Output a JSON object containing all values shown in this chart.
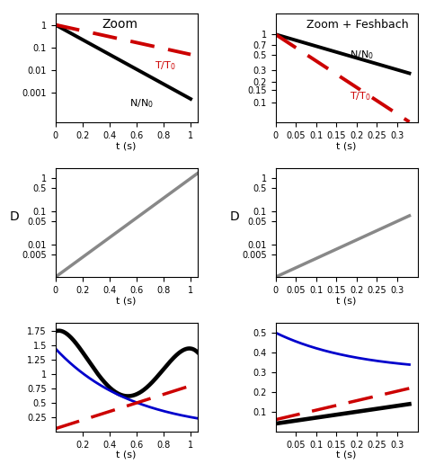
{
  "colors": {
    "black": "#000000",
    "red": "#cc0000",
    "blue": "#0000cc",
    "gray": "#888888"
  },
  "top_left": {
    "title": "Zoom",
    "xlim": [
      0,
      1.05
    ],
    "xticks": [
      0,
      0.2,
      0.4,
      0.6,
      0.8,
      1.0
    ],
    "xticklabels": [
      "0",
      "0.2",
      "0.4",
      "0.6",
      "0.8",
      "1"
    ],
    "ylim": [
      5e-05,
      3.0
    ],
    "yticks": [
      0.001,
      0.01,
      0.1,
      1
    ],
    "yticklabels": [
      "0.001",
      "0.01",
      "0.1",
      "1"
    ],
    "xlabel": "t (s)",
    "N_rate": 7.5,
    "T_rate": 3.0
  },
  "top_right": {
    "title": "Zoom + Feshbach",
    "xlim": [
      0,
      0.35
    ],
    "xticks": [
      0,
      0.05,
      0.1,
      0.15,
      0.2,
      0.25,
      0.3
    ],
    "xticklabels": [
      "0",
      "0.05",
      "0.1",
      "0.15",
      "0.2",
      "0.25",
      "0.3"
    ],
    "ylim": [
      0.05,
      2.0
    ],
    "yticks": [
      0.1,
      0.15,
      0.2,
      0.3,
      0.5,
      0.7,
      1.0
    ],
    "yticklabels": [
      "0.1",
      "0.15",
      "0.2",
      "0.3",
      "0.5",
      "0.7",
      "1"
    ],
    "xlabel": "t (s)",
    "N_rate": 4.0,
    "T_rate": 9.0
  },
  "mid_left": {
    "ylabel": "D",
    "xlim": [
      0,
      1.05
    ],
    "xticks": [
      0,
      0.2,
      0.4,
      0.6,
      0.8,
      1.0
    ],
    "xticklabels": [
      "0",
      "0.2",
      "0.4",
      "0.6",
      "0.8",
      "1"
    ],
    "ylim": [
      0.001,
      2.0
    ],
    "yticks": [
      0.005,
      0.01,
      0.05,
      0.1,
      0.5,
      1.0
    ],
    "yticklabels": [
      "0.005",
      "0.01",
      "0.05",
      "0.1",
      "0.5",
      "1"
    ],
    "xlabel": "t (s)",
    "D0": 0.001,
    "D_rate": 6.9
  },
  "mid_right": {
    "ylabel": "D",
    "xlim": [
      0,
      0.35
    ],
    "xticks": [
      0,
      0.05,
      0.1,
      0.15,
      0.2,
      0.25,
      0.3
    ],
    "xticklabels": [
      "0",
      "0.05",
      "0.1",
      "0.15",
      "0.2",
      "0.25",
      "0.3"
    ],
    "ylim": [
      0.001,
      2.0
    ],
    "yticks": [
      0.005,
      0.01,
      0.05,
      0.1,
      0.5,
      1.0
    ],
    "yticklabels": [
      "0.005",
      "0.01",
      "0.05",
      "0.1",
      "0.5",
      "1"
    ],
    "xlabel": "t (s)",
    "D0": 0.001,
    "D_rate": 13.0
  },
  "bot_left": {
    "xlim": [
      0,
      1.05
    ],
    "xticks": [
      0.2,
      0.4,
      0.6,
      0.8,
      1.0
    ],
    "xticklabels": [
      "0.2",
      "0.4",
      "0.6",
      "0.8",
      "1"
    ],
    "ylim": [
      0.0,
      1.9
    ],
    "yticks": [
      0.25,
      0.5,
      0.75,
      1.0,
      1.25,
      1.5,
      1.75
    ],
    "yticklabels": [
      "0.25",
      "0.5",
      "0.75",
      "1",
      "1.25",
      "1.5",
      "1.75"
    ],
    "xlabel": "t (s)"
  },
  "bot_right": {
    "xlim": [
      0,
      0.35
    ],
    "xticks": [
      0.05,
      0.1,
      0.15,
      0.2,
      0.25,
      0.3
    ],
    "xticklabels": [
      "0.05",
      "0.1",
      "0.15",
      "0.2",
      "0.25",
      "0.3"
    ],
    "ylim": [
      0.0,
      0.55
    ],
    "yticks": [
      0.1,
      0.2,
      0.3,
      0.4,
      0.5
    ],
    "yticklabels": [
      "0.1",
      "0.2",
      "0.3",
      "0.4",
      "0.5"
    ],
    "xlabel": "t (s)"
  }
}
